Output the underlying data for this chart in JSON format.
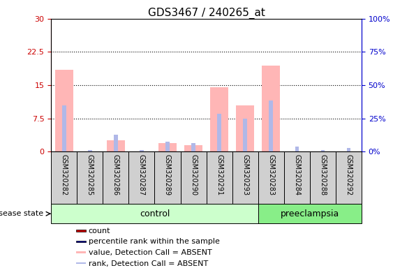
{
  "title": "GDS3467 / 240265_at",
  "samples": [
    "GSM320282",
    "GSM320285",
    "GSM320286",
    "GSM320287",
    "GSM320289",
    "GSM320290",
    "GSM320291",
    "GSM320293",
    "GSM320283",
    "GSM320284",
    "GSM320288",
    "GSM320292"
  ],
  "groups": [
    "control",
    "control",
    "control",
    "control",
    "control",
    "control",
    "control",
    "control",
    "preeclampsia",
    "preeclampsia",
    "preeclampsia",
    "preeclampsia"
  ],
  "value_absent": [
    18.5,
    0.0,
    2.5,
    0.0,
    2.0,
    1.5,
    14.5,
    10.5,
    19.5,
    0.0,
    0.0,
    0.0
  ],
  "rank_absent_pct": [
    35.0,
    1.3,
    12.7,
    1.0,
    7.3,
    6.3,
    28.3,
    25.0,
    38.3,
    3.7,
    1.0,
    2.7
  ],
  "ylim_left": [
    0,
    30
  ],
  "ylim_right": [
    0,
    100
  ],
  "yticks_left": [
    0,
    7.5,
    15,
    22.5,
    30
  ],
  "yticks_right": [
    0,
    25,
    50,
    75,
    100
  ],
  "yticklabels_left": [
    "0",
    "7.5",
    "15",
    "22.5",
    "30"
  ],
  "yticklabels_right": [
    "0%",
    "25%",
    "50%",
    "75%",
    "100%"
  ],
  "color_value_absent": "#ffb6b6",
  "color_rank_absent": "#b0b8e8",
  "color_count": "#cc0000",
  "color_rank_dark": "#000099",
  "color_control_bg": "#ccffcc",
  "color_preeclampsia_bg": "#88ee88",
  "color_axis_left": "#cc0000",
  "color_axis_right": "#0000cc",
  "color_label_gray": "#d0d0d0",
  "color_label_border": "#000000",
  "grid_dotted_color": "#000000",
  "legend_items": [
    {
      "label": "count",
      "color": "#cc0000"
    },
    {
      "label": "percentile rank within the sample",
      "color": "#000099"
    },
    {
      "label": "value, Detection Call = ABSENT",
      "color": "#ffb6b6"
    },
    {
      "label": "rank, Detection Call = ABSENT",
      "color": "#b0b8e8"
    }
  ]
}
